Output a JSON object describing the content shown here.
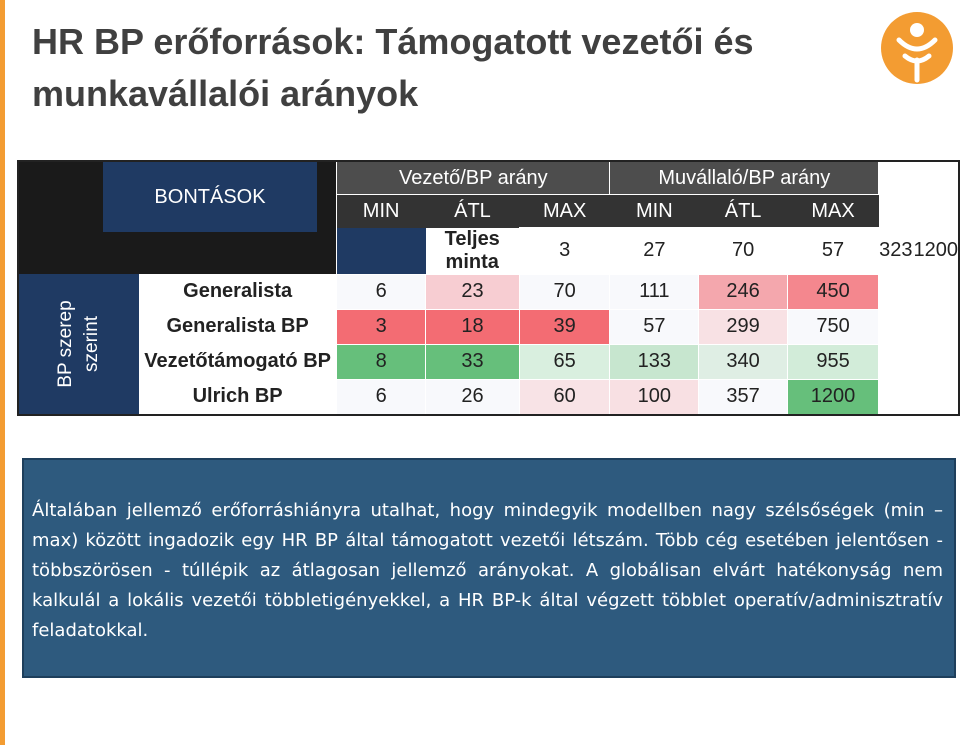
{
  "title": "HR BP erőforrások: Támogatott vezetői és munkavállalói arányok",
  "table": {
    "corner_label": "BONTÁSOK",
    "side_label": "BP szerep szerint",
    "groups": [
      "Vezető/BP arány",
      "Muvállaló/BP arány"
    ],
    "subheaders": [
      "MIN",
      "ÁTL",
      "MAX",
      "MIN",
      "ÁTL",
      "MAX"
    ],
    "rows": [
      {
        "label": "Teljes minta",
        "values": [
          "3",
          "27",
          "70",
          "57",
          "323",
          "1200"
        ]
      },
      {
        "label": "Generalista",
        "values": [
          "6",
          "23",
          "70",
          "111",
          "246",
          "450"
        ]
      },
      {
        "label": "Generalista BP",
        "values": [
          "3",
          "18",
          "39",
          "57",
          "299",
          "750"
        ]
      },
      {
        "label": "Vezetőtámogató BP",
        "values": [
          "8",
          "33",
          "65",
          "133",
          "340",
          "955"
        ]
      },
      {
        "label": "Ulrich BP",
        "values": [
          "6",
          "26",
          "60",
          "100",
          "357",
          "1200"
        ]
      }
    ],
    "cell_colors": [
      [
        "#ffffff",
        "#ffffff",
        "#ffffff",
        "#ffffff",
        "#ffffff",
        "#ffffff"
      ],
      [
        "#f8f9fc",
        "#f7cdd2",
        "#f8f9fc",
        "#f8f9fc",
        "#f4a7ad",
        "#f4878e"
      ],
      [
        "#f36c73",
        "#f36c73",
        "#f36c73",
        "#f8f9fc",
        "#f8e1e4",
        "#f8f9fc"
      ],
      [
        "#66bf7b",
        "#66bf7b",
        "#d9efdf",
        "#c7e6cf",
        "#dfeee4",
        "#d2ecd9"
      ],
      [
        "#f8f9fc",
        "#f8f9fc",
        "#f8e3e6",
        "#f8e0e3",
        "#f8f9fc",
        "#66bf7b"
      ]
    ]
  },
  "note": "Általában jellemző erőforráshiányra utalhat, hogy mindegyik modellben nagy szélsőségek (min – max) között ingadozik egy HR BP által támogatott vezetői létszám. Több cég esetében jelentősen - többszörösen - túllépik az átlagosan jellemző arányokat. A globálisan elvárt hatékonyság nem kalkulál a lokális vezetői többletigényekkel, a HR BP-k által végzett többlet operatív/adminisztratív feladatokkal.",
  "colors": {
    "accent": "#f39c32",
    "header_blue": "#1f3a63",
    "note_bg": "#2e5a7e"
  }
}
